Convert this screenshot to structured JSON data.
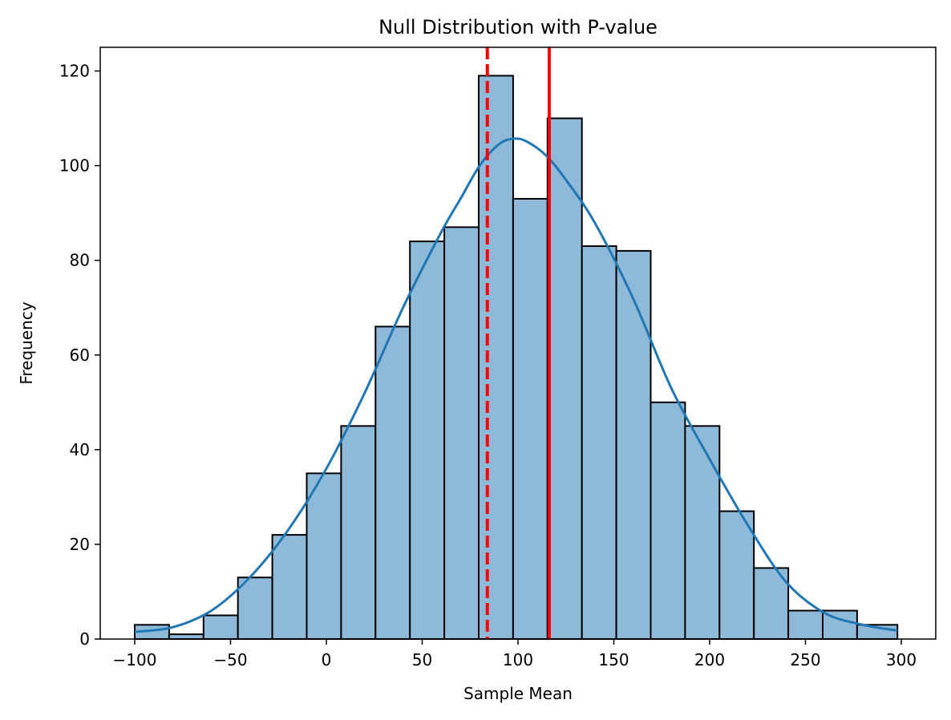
{
  "chart_data": {
    "type": "bar",
    "title": "Null Distribution with P-value",
    "xlabel": "Sample Mean",
    "ylabel": "Frequency",
    "xlim": [
      -118,
      318
    ],
    "ylim": [
      0,
      125
    ],
    "xticks": [
      -100,
      -50,
      0,
      50,
      100,
      150,
      200,
      250,
      300
    ],
    "xtick_labels": [
      "−100",
      "−50",
      "0",
      "50",
      "100",
      "150",
      "200",
      "250",
      "300"
    ],
    "yticks": [
      0,
      20,
      40,
      60,
      80,
      100,
      120
    ],
    "ytick_labels": [
      "0",
      "20",
      "40",
      "60",
      "80",
      "100",
      "120"
    ],
    "grid": false,
    "bins": {
      "edges": [
        -100,
        -82.05,
        -64.1,
        -46.15,
        -28.2,
        -10.25,
        7.7,
        25.65,
        43.6,
        61.55,
        79.5,
        97.45,
        115.4,
        133.35,
        151.3,
        169.25,
        187.2,
        205.15,
        223.1,
        241.05,
        259.0,
        276.95,
        298
      ],
      "counts": [
        3,
        1,
        5,
        13,
        22,
        35,
        45,
        66,
        84,
        87,
        119,
        93,
        110,
        83,
        82,
        50,
        45,
        27,
        15,
        6,
        6,
        3
      ]
    },
    "kde": {
      "x": [
        -100,
        -80,
        -60,
        -40,
        -20,
        0,
        20,
        40,
        60,
        70,
        80,
        90,
        98,
        105,
        115,
        125,
        140,
        160,
        180,
        200,
        220,
        240,
        260,
        280,
        298
      ],
      "y": [
        1.5,
        2.5,
        6,
        13,
        23,
        36,
        52,
        70,
        86,
        93,
        100,
        104.5,
        105.7,
        105,
        102,
        97,
        88,
        72,
        53,
        38,
        24,
        12,
        5.5,
        3,
        1.8
      ]
    },
    "vlines": [
      {
        "x": 84,
        "style": "dashed",
        "color": "#ff0000"
      },
      {
        "x": 116.3,
        "style": "solid",
        "color": "#ff0000"
      }
    ],
    "colors": {
      "bar_fill": "#8fb9d9",
      "bar_edge": "#000000",
      "kde_line": "#1f77b4"
    }
  }
}
